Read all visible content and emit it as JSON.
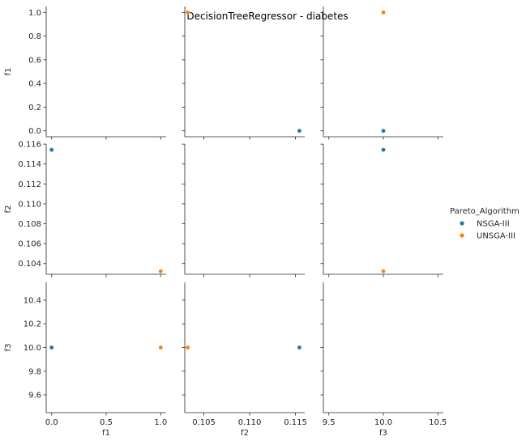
{
  "chart_data": {
    "type": "scatter",
    "title": "DecisionTreeRegressor - diabetes",
    "variables": [
      "f1",
      "f2",
      "f3"
    ],
    "axis_ranges": {
      "f1": [
        -0.05,
        1.05
      ],
      "f2": [
        0.10292,
        0.11601
      ],
      "f3": [
        9.45,
        10.55
      ]
    },
    "ticks": {
      "f1": {
        "x": [
          {
            "v": 0.0,
            "label": "0.0"
          },
          {
            "v": 0.5,
            "label": "0.5"
          },
          {
            "v": 1.0,
            "label": "1.0"
          }
        ],
        "y": [
          {
            "v": 0.0,
            "label": "0.0"
          },
          {
            "v": 0.2,
            "label": "0.2"
          },
          {
            "v": 0.4,
            "label": "0.4"
          },
          {
            "v": 0.6,
            "label": "0.6"
          },
          {
            "v": 0.8,
            "label": "0.8"
          },
          {
            "v": 1.0,
            "label": "1.0"
          }
        ]
      },
      "f2": {
        "x": [
          {
            "v": 0.105,
            "label": "0.105"
          },
          {
            "v": 0.11,
            "label": "0.110"
          },
          {
            "v": 0.115,
            "label": "0.115"
          }
        ],
        "y": [
          {
            "v": 0.104,
            "label": "0.104"
          },
          {
            "v": 0.106,
            "label": "0.106"
          },
          {
            "v": 0.108,
            "label": "0.108"
          },
          {
            "v": 0.11,
            "label": "0.110"
          },
          {
            "v": 0.112,
            "label": "0.112"
          },
          {
            "v": 0.114,
            "label": "0.114"
          },
          {
            "v": 0.116,
            "label": "0.116"
          }
        ]
      },
      "f3": {
        "x": [
          {
            "v": 9.5,
            "label": "9.5"
          },
          {
            "v": 10.0,
            "label": "10.0"
          },
          {
            "v": 10.5,
            "label": "10.5"
          }
        ],
        "y": [
          {
            "v": 9.6,
            "label": "9.6"
          },
          {
            "v": 9.8,
            "label": "9.8"
          },
          {
            "v": 10.0,
            "label": "10.0"
          },
          {
            "v": 10.2,
            "label": "10.2"
          },
          {
            "v": 10.4,
            "label": "10.4"
          }
        ]
      }
    },
    "legend": {
      "title": "Pareto_Algorithm",
      "placement": "right",
      "entries": [
        {
          "name": "NSGA-III",
          "color": "#1f77b4"
        },
        {
          "name": "UNSGA-III",
          "color": "#ff7f0e"
        }
      ]
    },
    "series": [
      {
        "name": "NSGA-III",
        "color": "#1f77b4",
        "points": [
          {
            "f1": 0.0,
            "f2": 0.11543,
            "f3": 10.0
          }
        ]
      },
      {
        "name": "UNSGA-III",
        "color": "#ff7f0e",
        "points": [
          {
            "f1": 1.0,
            "f2": 0.10323,
            "f3": 10.0
          }
        ]
      }
    ],
    "grid": false,
    "diagonal": "empty"
  }
}
